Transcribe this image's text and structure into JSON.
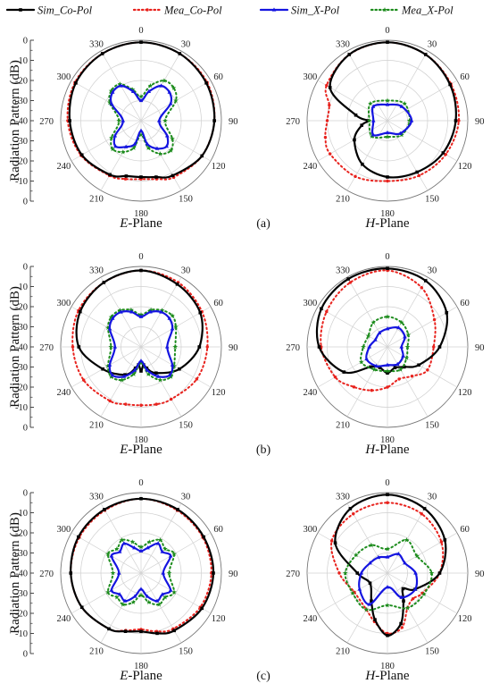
{
  "legend": [
    {
      "key": "sim_co",
      "label": "Sim_Co-Pol",
      "color": "#000000",
      "dash": "solid",
      "marker": "square"
    },
    {
      "key": "mea_co",
      "label": "Mea_Co-Pol",
      "color": "#e8221d",
      "dash": "dotted",
      "marker": "circle"
    },
    {
      "key": "sim_x",
      "label": "Sim_X-Pol",
      "color": "#1515e0",
      "dash": "solid",
      "marker": "triangle"
    },
    {
      "key": "mea_x",
      "label": "Mea_X-Pol",
      "color": "#1d8c1d",
      "dash": "dotted",
      "marker": "star"
    }
  ],
  "chart_data": [
    {
      "type": "polar",
      "panel": "a",
      "plane": "E",
      "plane_label": "-Plane",
      "subfig": "(a)",
      "ylabel": "Radiation Pattern (dB)",
      "r_ticks": [
        "0",
        "-10",
        "-20",
        "-30",
        "-40",
        "-30",
        "-20",
        "-10",
        "0"
      ],
      "angle_labels": [
        "0",
        "30",
        "60",
        "90",
        "120",
        "150",
        "180",
        "210",
        "240",
        "270",
        "300",
        "330"
      ],
      "rlim": [
        -40,
        0
      ],
      "series": {
        "sim_co": {
          "angles": [
            0,
            30,
            60,
            90,
            120,
            150,
            165,
            180,
            195,
            210,
            240,
            270,
            300,
            330
          ],
          "values": [
            -1,
            -1.5,
            -2.5,
            -3.5,
            -5,
            -8.5,
            -11,
            -12,
            -11.5,
            -9,
            -6,
            -4.5,
            -2.5,
            -1.5
          ]
        },
        "mea_co": {
          "angles": [
            0,
            30,
            60,
            90,
            120,
            150,
            165,
            180,
            195,
            210,
            240,
            270,
            300,
            330
          ],
          "values": [
            -1,
            -1.5,
            -2,
            -3.5,
            -5,
            -7.5,
            -10,
            -11,
            -10,
            -8.5,
            -5.5,
            -3.5,
            -2,
            -1.5
          ]
        },
        "sim_x": {
          "angles": [
            0,
            15,
            30,
            45,
            60,
            90,
            120,
            135,
            150,
            165,
            180,
            195,
            210,
            225,
            240,
            270,
            300,
            315,
            330,
            345
          ],
          "values": [
            -30,
            -25,
            -20,
            -20,
            -23,
            -31,
            -25,
            -22,
            -24,
            -28,
            -35,
            -28,
            -25,
            -22,
            -25,
            -31,
            -23,
            -20,
            -20,
            -25
          ]
        },
        "mea_x": {
          "angles": [
            0,
            15,
            30,
            45,
            60,
            90,
            120,
            135,
            150,
            165,
            180,
            195,
            210,
            225,
            240,
            270,
            300,
            315,
            330,
            345
          ],
          "values": [
            -28,
            -22,
            -17,
            -17,
            -20,
            -28,
            -22,
            -19,
            -21,
            -26,
            -33,
            -26,
            -22,
            -20,
            -23,
            -29,
            -22,
            -19,
            -19,
            -24
          ]
        }
      }
    },
    {
      "type": "polar",
      "panel": "a",
      "plane": "H",
      "plane_label": "-Plane",
      "subfig": "",
      "ylabel": "",
      "r_ticks": [],
      "angle_labels": [
        "0",
        "30",
        "60",
        "90",
        "120",
        "150",
        "180",
        "210",
        "240",
        "270",
        "300",
        "330"
      ],
      "rlim": [
        -40,
        0
      ],
      "series": {
        "sim_co": {
          "angles": [
            0,
            30,
            60,
            90,
            120,
            150,
            180,
            210,
            240,
            260,
            270,
            280,
            300,
            330
          ],
          "values": [
            -1,
            -2,
            -4,
            -6,
            -8,
            -10.5,
            -12,
            -15,
            -21,
            -27,
            -30,
            -24,
            -7,
            -2
          ]
        },
        "mea_co": {
          "angles": [
            0,
            30,
            60,
            90,
            120,
            150,
            180,
            210,
            240,
            255,
            270,
            285,
            300,
            330
          ],
          "values": [
            -1,
            -2,
            -3.5,
            -4.5,
            -6.5,
            -8.5,
            -10,
            -8,
            -7,
            -8,
            -10,
            -10,
            -5,
            -2
          ]
        },
        "sim_x": {
          "angles": [
            0,
            45,
            90,
            135,
            180,
            225,
            270,
            315
          ],
          "values": [
            -32,
            -30,
            -28,
            -31,
            -34,
            -30,
            -33,
            -30
          ]
        },
        "mea_x": {
          "angles": [
            0,
            45,
            90,
            135,
            180,
            225,
            270,
            315
          ],
          "values": [
            -30,
            -28,
            -29,
            -30,
            -32,
            -29,
            -31,
            -28
          ]
        }
      }
    },
    {
      "type": "polar",
      "panel": "b",
      "plane": "E",
      "plane_label": "-Plane",
      "subfig": "(b)",
      "ylabel": "Radiation Pattern (dB)",
      "r_ticks": [
        "0",
        "-10",
        "-20",
        "-30",
        "-40",
        "-30",
        "-20",
        "-10",
        "0"
      ],
      "angle_labels": [
        "0",
        "30",
        "60",
        "90",
        "120",
        "150",
        "180",
        "210",
        "240",
        "270",
        "300",
        "330"
      ],
      "rlim": [
        -40,
        0
      ],
      "series": {
        "sim_co": {
          "angles": [
            0,
            30,
            60,
            90,
            120,
            150,
            165,
            172,
            180,
            188,
            195,
            210,
            240,
            270,
            300,
            330
          ],
          "values": [
            -2,
            -4,
            -6,
            -11,
            -18,
            -25,
            -29,
            -31,
            -28,
            -31,
            -29,
            -24,
            -18,
            -9,
            -5,
            -3
          ]
        },
        "mea_co": {
          "angles": [
            0,
            30,
            60,
            90,
            120,
            150,
            165,
            180,
            195,
            210,
            240,
            270,
            300,
            330
          ],
          "values": [
            -2,
            -3,
            -5,
            -7,
            -8,
            -10,
            -10.5,
            -11,
            -10.5,
            -9,
            -7,
            -6,
            -4,
            -3
          ]
        },
        "sim_x": {
          "angles": [
            0,
            15,
            30,
            45,
            60,
            90,
            120,
            135,
            150,
            165,
            180,
            195,
            210,
            225,
            240,
            270,
            300,
            315,
            330,
            345
          ],
          "values": [
            -25,
            -22,
            -20,
            -20,
            -22,
            -27,
            -22,
            -20,
            -23,
            -28,
            -33,
            -28,
            -23,
            -20,
            -22,
            -27,
            -22,
            -20,
            -20,
            -22
          ]
        },
        "mea_x": {
          "angles": [
            0,
            15,
            30,
            45,
            60,
            90,
            120,
            135,
            150,
            165,
            180,
            195,
            210,
            225,
            240,
            270,
            300,
            315,
            330,
            345
          ],
          "values": [
            -24,
            -21,
            -19,
            -18,
            -20,
            -23,
            -21,
            -19,
            -21,
            -26,
            -32,
            -26,
            -21,
            -19,
            -21,
            -25,
            -21,
            -19,
            -19,
            -21
          ]
        }
      }
    },
    {
      "type": "polar",
      "panel": "b",
      "plane": "H",
      "plane_label": "-Plane",
      "subfig": "",
      "ylabel": "",
      "r_ticks": [],
      "angle_labels": [
        "0",
        "30",
        "60",
        "90",
        "120",
        "150",
        "180",
        "210",
        "240",
        "270",
        "300",
        "330"
      ],
      "rlim": [
        -40,
        0
      ],
      "series": {
        "sim_co": {
          "angles": [
            0,
            30,
            60,
            90,
            120,
            140,
            160,
            180,
            200,
            220,
            240,
            270,
            300,
            330
          ],
          "values": [
            -1,
            -2,
            -6,
            -14,
            -22,
            -27,
            -29,
            -27,
            -29,
            -27,
            -15,
            -6,
            -2,
            -1
          ]
        },
        "mea_co": {
          "angles": [
            0,
            30,
            60,
            90,
            120,
            140,
            160,
            180,
            200,
            220,
            240,
            270,
            300,
            330
          ],
          "values": [
            -2,
            -6,
            -13,
            -17,
            -17,
            -21,
            -23,
            -20,
            -17,
            -14,
            -10,
            -7,
            -5,
            -3
          ]
        },
        "sim_x": {
          "angles": [
            0,
            30,
            60,
            90,
            120,
            150,
            180,
            210,
            240,
            270,
            300,
            330
          ],
          "values": [
            -31,
            -29,
            -30,
            -33,
            -31,
            -30,
            -31,
            -29,
            -28,
            -31,
            -33,
            -32
          ]
        },
        "mea_x": {
          "angles": [
            0,
            30,
            60,
            90,
            120,
            150,
            180,
            210,
            240,
            270,
            300,
            330
          ],
          "values": [
            -25,
            -26,
            -28,
            -30,
            -29,
            -27,
            -28,
            -27,
            -25,
            -28,
            -29,
            -26
          ]
        }
      }
    },
    {
      "type": "polar",
      "panel": "c",
      "plane": "E",
      "plane_label": "-Plane",
      "subfig": "(c)",
      "ylabel": "Radiation Pattern (dB)",
      "r_ticks": [
        "0",
        "-10",
        "-20",
        "-30",
        "-40",
        "-30",
        "-20",
        "-10",
        "0"
      ],
      "angle_labels": [
        "0",
        "30",
        "60",
        "90",
        "120",
        "150",
        "180",
        "210",
        "240",
        "270",
        "300",
        "330"
      ],
      "rlim": [
        -40,
        0
      ],
      "series": {
        "sim_co": {
          "angles": [
            0,
            30,
            60,
            90,
            120,
            150,
            165,
            180,
            195,
            210,
            240,
            270,
            300,
            330
          ],
          "values": [
            -3,
            -3.5,
            -4,
            -4,
            -5,
            -7,
            -9,
            -11,
            -10,
            -8,
            -6,
            -5,
            -4,
            -3.5
          ]
        },
        "mea_co": {
          "angles": [
            0,
            30,
            60,
            90,
            120,
            150,
            165,
            180,
            195,
            210,
            240,
            270,
            300,
            330
          ],
          "values": [
            -3,
            -4,
            -4.5,
            -5,
            -6,
            -8,
            -10,
            -12,
            -10.5,
            -8,
            -6,
            -5,
            -4.5,
            -4
          ]
        },
        "sim_x": {
          "angles": [
            0,
            15,
            30,
            45,
            60,
            90,
            120,
            135,
            150,
            165,
            180,
            195,
            210,
            225,
            240,
            270,
            300,
            315,
            330,
            345
          ],
          "values": [
            -29,
            -27,
            -23,
            -25,
            -23,
            -29,
            -23,
            -25,
            -24,
            -28,
            -32,
            -28,
            -24,
            -25,
            -23,
            -29,
            -23,
            -25,
            -23,
            -27
          ]
        },
        "mea_x": {
          "angles": [
            0,
            15,
            30,
            45,
            60,
            90,
            120,
            135,
            150,
            165,
            180,
            195,
            210,
            225,
            240,
            270,
            300,
            315,
            330,
            345
          ],
          "values": [
            -27,
            -24,
            -21,
            -23,
            -21,
            -26,
            -21,
            -23,
            -22,
            -25,
            -29,
            -25,
            -22,
            -23,
            -21,
            -26,
            -21,
            -23,
            -21,
            -24
          ]
        }
      }
    },
    {
      "type": "polar",
      "panel": "c",
      "plane": "H",
      "plane_label": "-Plane",
      "subfig": "",
      "ylabel": "",
      "r_ticks": [],
      "angle_labels": [
        "0",
        "30",
        "60",
        "90",
        "120",
        "150",
        "180",
        "210",
        "240",
        "270",
        "300",
        "330"
      ],
      "rlim": [
        -40,
        0
      ],
      "series": {
        "sim_co": {
          "angles": [
            0,
            30,
            60,
            90,
            120,
            135,
            150,
            165,
            180,
            195,
            210,
            240,
            270,
            300,
            330
          ],
          "values": [
            -1,
            -3,
            -7,
            -14,
            -24,
            -29,
            -24,
            -14,
            -9,
            -16,
            -24,
            -30,
            -25,
            -10,
            -3
          ]
        },
        "mea_co": {
          "angles": [
            0,
            30,
            60,
            90,
            120,
            135,
            150,
            165,
            180,
            195,
            210,
            240,
            270,
            300,
            330
          ],
          "values": [
            -5,
            -6,
            -9,
            -14,
            -20,
            -22,
            -20,
            -12,
            -10,
            -15,
            -19,
            -21,
            -16,
            -8,
            -6
          ]
        },
        "sim_x": {
          "angles": [
            0,
            30,
            60,
            90,
            120,
            150,
            180,
            210,
            240,
            270,
            300,
            330
          ],
          "values": [
            -32,
            -29,
            -30,
            -26,
            -24,
            -26,
            -33,
            -22,
            -24,
            -27,
            -30,
            -31
          ]
        },
        "mea_x": {
          "angles": [
            0,
            30,
            60,
            90,
            120,
            150,
            180,
            210,
            240,
            270,
            300,
            330
          ],
          "values": [
            -28,
            -21,
            -23,
            -18,
            -19,
            -20,
            -24,
            -19,
            -20,
            -19,
            -22,
            -24
          ]
        }
      }
    }
  ]
}
